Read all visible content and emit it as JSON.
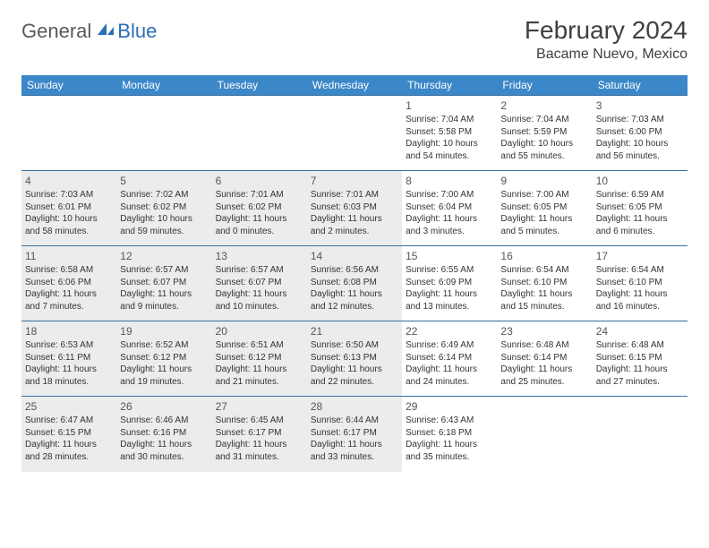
{
  "logo": {
    "general": "General",
    "blue": "Blue"
  },
  "title": "February 2024",
  "location": "Bacame Nuevo, Mexico",
  "header_bg": "#3b87c8",
  "header_fg": "#ffffff",
  "border_color": "#3b6fa0",
  "shade_color": "#ececec",
  "weekdays": [
    "Sunday",
    "Monday",
    "Tuesday",
    "Wednesday",
    "Thursday",
    "Friday",
    "Saturday"
  ],
  "weeks": [
    [
      {
        "empty": true
      },
      {
        "empty": true
      },
      {
        "empty": true
      },
      {
        "empty": true
      },
      {
        "day": "1",
        "sunrise": "Sunrise: 7:04 AM",
        "sunset": "Sunset: 5:58 PM",
        "dl1": "Daylight: 10 hours",
        "dl2": "and 54 minutes."
      },
      {
        "day": "2",
        "sunrise": "Sunrise: 7:04 AM",
        "sunset": "Sunset: 5:59 PM",
        "dl1": "Daylight: 10 hours",
        "dl2": "and 55 minutes."
      },
      {
        "day": "3",
        "sunrise": "Sunrise: 7:03 AM",
        "sunset": "Sunset: 6:00 PM",
        "dl1": "Daylight: 10 hours",
        "dl2": "and 56 minutes."
      }
    ],
    [
      {
        "day": "4",
        "shaded": true,
        "sunrise": "Sunrise: 7:03 AM",
        "sunset": "Sunset: 6:01 PM",
        "dl1": "Daylight: 10 hours",
        "dl2": "and 58 minutes."
      },
      {
        "day": "5",
        "shaded": true,
        "sunrise": "Sunrise: 7:02 AM",
        "sunset": "Sunset: 6:02 PM",
        "dl1": "Daylight: 10 hours",
        "dl2": "and 59 minutes."
      },
      {
        "day": "6",
        "shaded": true,
        "sunrise": "Sunrise: 7:01 AM",
        "sunset": "Sunset: 6:02 PM",
        "dl1": "Daylight: 11 hours",
        "dl2": "and 0 minutes."
      },
      {
        "day": "7",
        "shaded": true,
        "sunrise": "Sunrise: 7:01 AM",
        "sunset": "Sunset: 6:03 PM",
        "dl1": "Daylight: 11 hours",
        "dl2": "and 2 minutes."
      },
      {
        "day": "8",
        "sunrise": "Sunrise: 7:00 AM",
        "sunset": "Sunset: 6:04 PM",
        "dl1": "Daylight: 11 hours",
        "dl2": "and 3 minutes."
      },
      {
        "day": "9",
        "sunrise": "Sunrise: 7:00 AM",
        "sunset": "Sunset: 6:05 PM",
        "dl1": "Daylight: 11 hours",
        "dl2": "and 5 minutes."
      },
      {
        "day": "10",
        "sunrise": "Sunrise: 6:59 AM",
        "sunset": "Sunset: 6:05 PM",
        "dl1": "Daylight: 11 hours",
        "dl2": "and 6 minutes."
      }
    ],
    [
      {
        "day": "11",
        "shaded": true,
        "sunrise": "Sunrise: 6:58 AM",
        "sunset": "Sunset: 6:06 PM",
        "dl1": "Daylight: 11 hours",
        "dl2": "and 7 minutes."
      },
      {
        "day": "12",
        "shaded": true,
        "sunrise": "Sunrise: 6:57 AM",
        "sunset": "Sunset: 6:07 PM",
        "dl1": "Daylight: 11 hours",
        "dl2": "and 9 minutes."
      },
      {
        "day": "13",
        "shaded": true,
        "sunrise": "Sunrise: 6:57 AM",
        "sunset": "Sunset: 6:07 PM",
        "dl1": "Daylight: 11 hours",
        "dl2": "and 10 minutes."
      },
      {
        "day": "14",
        "shaded": true,
        "sunrise": "Sunrise: 6:56 AM",
        "sunset": "Sunset: 6:08 PM",
        "dl1": "Daylight: 11 hours",
        "dl2": "and 12 minutes."
      },
      {
        "day": "15",
        "sunrise": "Sunrise: 6:55 AM",
        "sunset": "Sunset: 6:09 PM",
        "dl1": "Daylight: 11 hours",
        "dl2": "and 13 minutes."
      },
      {
        "day": "16",
        "sunrise": "Sunrise: 6:54 AM",
        "sunset": "Sunset: 6:10 PM",
        "dl1": "Daylight: 11 hours",
        "dl2": "and 15 minutes."
      },
      {
        "day": "17",
        "sunrise": "Sunrise: 6:54 AM",
        "sunset": "Sunset: 6:10 PM",
        "dl1": "Daylight: 11 hours",
        "dl2": "and 16 minutes."
      }
    ],
    [
      {
        "day": "18",
        "shaded": true,
        "sunrise": "Sunrise: 6:53 AM",
        "sunset": "Sunset: 6:11 PM",
        "dl1": "Daylight: 11 hours",
        "dl2": "and 18 minutes."
      },
      {
        "day": "19",
        "shaded": true,
        "sunrise": "Sunrise: 6:52 AM",
        "sunset": "Sunset: 6:12 PM",
        "dl1": "Daylight: 11 hours",
        "dl2": "and 19 minutes."
      },
      {
        "day": "20",
        "shaded": true,
        "sunrise": "Sunrise: 6:51 AM",
        "sunset": "Sunset: 6:12 PM",
        "dl1": "Daylight: 11 hours",
        "dl2": "and 21 minutes."
      },
      {
        "day": "21",
        "shaded": true,
        "sunrise": "Sunrise: 6:50 AM",
        "sunset": "Sunset: 6:13 PM",
        "dl1": "Daylight: 11 hours",
        "dl2": "and 22 minutes."
      },
      {
        "day": "22",
        "sunrise": "Sunrise: 6:49 AM",
        "sunset": "Sunset: 6:14 PM",
        "dl1": "Daylight: 11 hours",
        "dl2": "and 24 minutes."
      },
      {
        "day": "23",
        "sunrise": "Sunrise: 6:48 AM",
        "sunset": "Sunset: 6:14 PM",
        "dl1": "Daylight: 11 hours",
        "dl2": "and 25 minutes."
      },
      {
        "day": "24",
        "sunrise": "Sunrise: 6:48 AM",
        "sunset": "Sunset: 6:15 PM",
        "dl1": "Daylight: 11 hours",
        "dl2": "and 27 minutes."
      }
    ],
    [
      {
        "day": "25",
        "shaded": true,
        "sunrise": "Sunrise: 6:47 AM",
        "sunset": "Sunset: 6:15 PM",
        "dl1": "Daylight: 11 hours",
        "dl2": "and 28 minutes."
      },
      {
        "day": "26",
        "shaded": true,
        "sunrise": "Sunrise: 6:46 AM",
        "sunset": "Sunset: 6:16 PM",
        "dl1": "Daylight: 11 hours",
        "dl2": "and 30 minutes."
      },
      {
        "day": "27",
        "shaded": true,
        "sunrise": "Sunrise: 6:45 AM",
        "sunset": "Sunset: 6:17 PM",
        "dl1": "Daylight: 11 hours",
        "dl2": "and 31 minutes."
      },
      {
        "day": "28",
        "shaded": true,
        "sunrise": "Sunrise: 6:44 AM",
        "sunset": "Sunset: 6:17 PM",
        "dl1": "Daylight: 11 hours",
        "dl2": "and 33 minutes."
      },
      {
        "day": "29",
        "sunrise": "Sunrise: 6:43 AM",
        "sunset": "Sunset: 6:18 PM",
        "dl1": "Daylight: 11 hours",
        "dl2": "and 35 minutes."
      },
      {
        "empty": true
      },
      {
        "empty": true
      }
    ]
  ]
}
